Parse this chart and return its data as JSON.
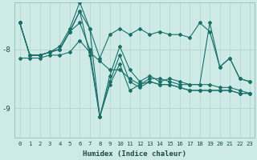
{
  "xlabel": "Humidex (Indice chaleur)",
  "bg_color": "#ceeae7",
  "line_color": "#1a7068",
  "grid_color": "#b8d8d4",
  "xlim": [
    -0.5,
    23.5
  ],
  "ylim": [
    -9.5,
    -7.2
  ],
  "yticks": [
    -9,
    -8
  ],
  "xticks": [
    0,
    1,
    2,
    3,
    4,
    5,
    6,
    7,
    8,
    9,
    10,
    11,
    12,
    13,
    14,
    15,
    16,
    17,
    18,
    19,
    20,
    21,
    22,
    23
  ],
  "lines": [
    {
      "x": [
        0,
        1,
        2,
        3,
        4,
        5,
        6,
        7,
        8,
        9,
        10,
        11,
        12,
        13,
        14,
        15,
        16,
        17,
        18,
        19,
        20,
        21,
        22,
        23
      ],
      "y": [
        -7.55,
        -8.1,
        -8.1,
        -8.05,
        -8.0,
        -7.7,
        -7.35,
        -7.65,
        -8.15,
        -7.75,
        -7.65,
        -7.75,
        -7.65,
        -7.75,
        -7.7,
        -7.75,
        -7.75,
        -7.8,
        -7.55,
        -7.7,
        -8.3,
        -8.15,
        -8.5,
        -8.55
      ]
    },
    {
      "x": [
        0,
        1,
        2,
        3,
        4,
        5,
        6,
        7,
        8,
        9,
        10,
        11,
        12,
        13,
        14,
        15,
        16,
        17,
        18,
        19,
        20,
        21,
        22,
        23
      ],
      "y": [
        -7.55,
        -8.1,
        -8.1,
        -8.05,
        -8.0,
        -7.7,
        -7.35,
        -8.1,
        -9.15,
        -8.55,
        -8.1,
        -8.55,
        -8.65,
        -8.55,
        -8.6,
        -8.6,
        -8.65,
        -8.7,
        -8.7,
        -8.7,
        -8.7,
        -8.7,
        -8.75,
        -8.75
      ]
    },
    {
      "x": [
        0,
        1,
        2,
        3,
        4,
        5,
        6,
        7,
        8,
        9,
        10,
        11,
        12,
        13,
        14,
        15,
        16,
        17,
        18,
        19,
        20,
        21,
        22,
        23
      ],
      "y": [
        -7.55,
        -8.1,
        -8.1,
        -8.05,
        -8.0,
        -7.7,
        -7.55,
        -8.0,
        -9.15,
        -8.6,
        -8.25,
        -8.7,
        -8.6,
        -8.55,
        -8.6,
        -8.6,
        -8.65,
        -8.7,
        -8.7,
        -8.7,
        -8.7,
        -8.7,
        -8.75,
        -8.75
      ]
    },
    {
      "x": [
        0,
        1,
        2,
        3,
        4,
        5,
        6,
        7,
        8,
        9,
        10,
        11,
        12,
        13,
        14,
        15,
        16,
        17,
        18,
        19,
        20,
        21,
        22,
        23
      ],
      "y": [
        -7.55,
        -8.1,
        -8.1,
        -8.05,
        -7.95,
        -7.65,
        -7.2,
        -7.65,
        -9.15,
        -8.45,
        -7.95,
        -8.35,
        -8.55,
        -8.45,
        -8.55,
        -8.5,
        -8.55,
        -8.6,
        -8.6,
        -8.6,
        -8.65,
        -8.65,
        -8.7,
        -8.75
      ]
    },
    {
      "x": [
        0,
        1,
        2,
        3,
        4,
        5,
        6,
        7,
        8,
        9,
        10,
        11,
        12,
        13,
        14,
        15,
        16,
        17,
        18,
        19,
        20,
        21,
        22,
        23
      ],
      "y": [
        -8.15,
        -8.15,
        -8.15,
        -8.1,
        -8.1,
        -8.05,
        -7.85,
        -8.05,
        -8.2,
        -8.35,
        -8.35,
        -8.5,
        -8.6,
        -8.5,
        -8.5,
        -8.55,
        -8.6,
        -8.6,
        -8.6,
        -7.55,
        -8.3,
        -8.15,
        -8.5,
        -8.55
      ]
    }
  ]
}
